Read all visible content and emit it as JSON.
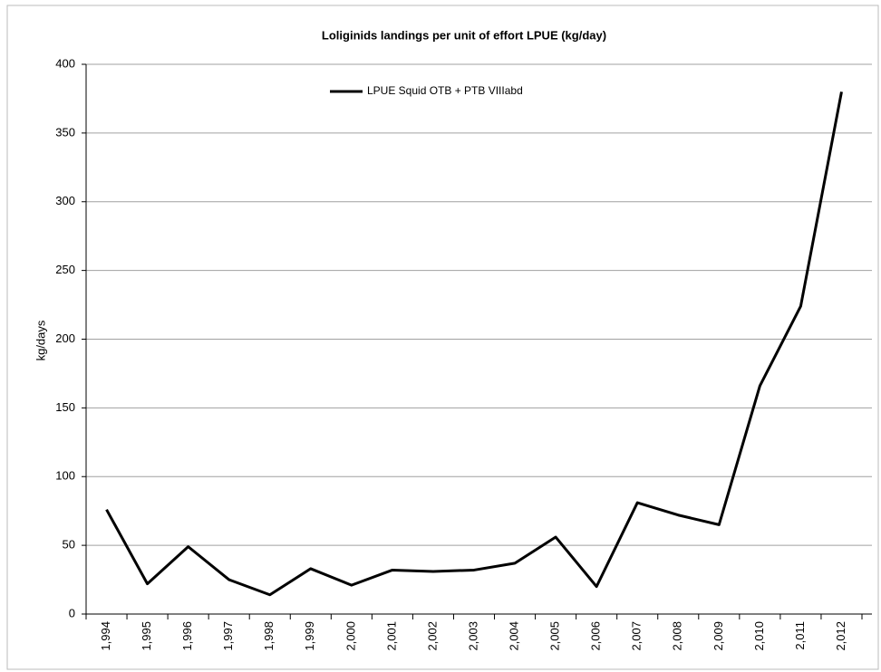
{
  "chart_data": {
    "type": "line",
    "title": "Loliginids landings per unit of effort LPUE (kg/day)",
    "y_label": "kg/days",
    "categories": [
      "1,994",
      "1,995",
      "1,996",
      "1,997",
      "1,998",
      "1,999",
      "2,000",
      "2,001",
      "2,002",
      "2,003",
      "2,004",
      "2,005",
      "2,006",
      "2,007",
      "2,008",
      "2,009",
      "2,010",
      "2,011",
      "2,012"
    ],
    "series": [
      {
        "name": "LPUE Squid OTB + PTB VIIIabd",
        "color": "#000000",
        "values": [
          76,
          22,
          49,
          25,
          14,
          33,
          21,
          32,
          31,
          32,
          37,
          56,
          20,
          81,
          72,
          65,
          166,
          224,
          380
        ]
      }
    ],
    "ylim": [
      0,
      400
    ],
    "yticks": [
      0,
      50,
      100,
      150,
      200,
      250,
      300,
      350,
      400
    ],
    "grid": true,
    "legend": "top"
  }
}
